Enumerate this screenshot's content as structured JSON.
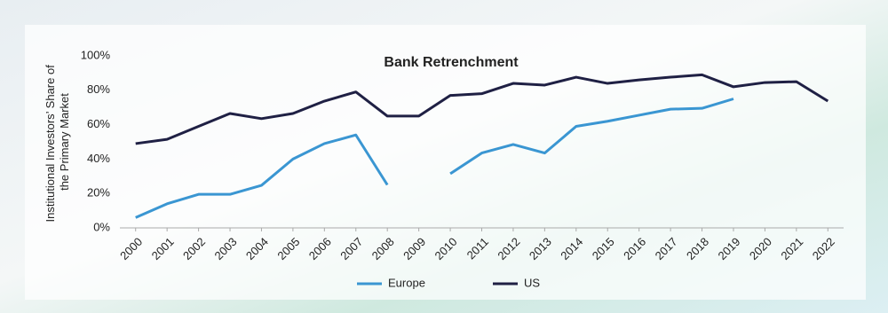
{
  "chart_data": {
    "type": "line",
    "title": "Bank Retrenchment",
    "ylabel": [
      "Institutional Investors’ Share of",
      "the Primary Market"
    ],
    "categories": [
      "2000",
      "2001",
      "2002",
      "2003",
      "2004",
      "2005",
      "2006",
      "2007",
      "2008",
      "2009",
      "2010",
      "2011",
      "2012",
      "2013",
      "2014",
      "2015",
      "2016",
      "2017",
      "2018",
      "2019",
      "2020",
      "2021",
      "2022"
    ],
    "series": [
      {
        "name": "Europe",
        "color": "#3a96d2",
        "values": [
          6,
          14,
          19.5,
          19.5,
          24.7,
          40,
          49,
          54,
          25,
          null,
          31.5,
          43.5,
          48.5,
          43.5,
          59,
          62,
          65.5,
          69,
          69.5,
          75,
          null,
          null,
          null
        ]
      },
      {
        "name": "US",
        "color": "#1f2044",
        "values": [
          49,
          51.5,
          59,
          66.5,
          63.5,
          66.5,
          73.7,
          79,
          65,
          65,
          77,
          78,
          84,
          83,
          87.6,
          84,
          86,
          87.6,
          89,
          82,
          84.5,
          85,
          73.7
        ]
      }
    ],
    "ylim": [
      0,
      100
    ],
    "yticks": [
      {
        "value": 0,
        "label": "0%"
      },
      {
        "value": 20,
        "label": "20%"
      },
      {
        "value": 40,
        "label": "40%"
      },
      {
        "value": 60,
        "label": "60%"
      },
      {
        "value": 80,
        "label": "80%"
      },
      {
        "value": 100,
        "label": "100%"
      }
    ],
    "grid": false,
    "legend": "bottom"
  }
}
